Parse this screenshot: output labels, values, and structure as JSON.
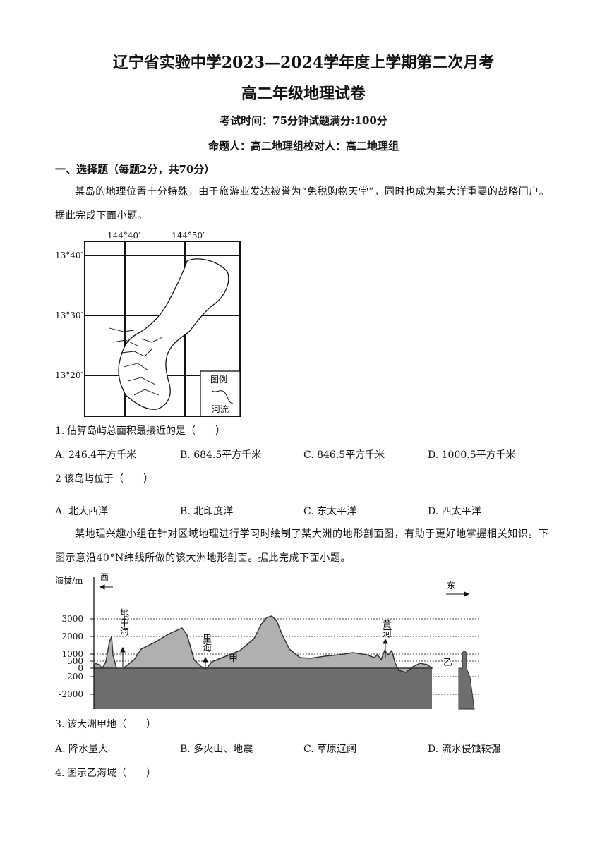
{
  "header": {
    "title": "辽宁省实验中学2023—2024学年度上学期第二次月考",
    "subtitle": "高二年级地理试卷",
    "exam_info": "考试时间：75分钟试题满分:100分",
    "authors": "命题人：高二地理组校对人：高二地理组"
  },
  "section": {
    "title": "一、选择题（每题2分，共70分）"
  },
  "passages": [
    {
      "text": "某岛的地理位置十分特殊，由于旅游业发达被誉为“免税购物天堂”，同时也成为某大洋重要的战略门户。据此完成下面小题。"
    },
    {
      "text": "某地理兴趣小组在针对区域地理进行学习时绘制了某大洲的地形剖面图，有助于更好地掌握相关知识。下图示意沿40°N纬线所做的该大洲地形剖面。据此完成下面小题。"
    }
  ],
  "map": {
    "lon_labels": [
      "144°40′",
      "144°50′"
    ],
    "lat_labels": [
      "13°40′",
      "13°30′",
      "13°20′"
    ],
    "legend_title": "图例",
    "legend_item": "河流"
  },
  "profile": {
    "y_axis_title": "海拔/m",
    "west": "西",
    "east": "东",
    "y_labels": [
      "3000",
      "2000",
      "1000",
      "500",
      "0",
      "-200",
      "-2000"
    ],
    "place_labels": [
      "地中海",
      "里海",
      "甲",
      "黄河",
      "乙"
    ]
  },
  "questions": [
    {
      "number": "1.",
      "stem": "估算岛屿总面积最接近的是（　　）",
      "options": [
        "A. 246.4平方千米",
        "B. 684.5平方千米",
        "C. 846.5平方千米",
        "D. 1000.5平方千米"
      ]
    },
    {
      "number": "2",
      "stem": "该岛屿位于（　　）",
      "options": [
        "A. 北大西洋",
        "B. 北印度洋",
        "C. 东太平洋",
        "D. 西太平洋"
      ]
    },
    {
      "number": "3.",
      "stem": "该大洲甲地（　　）",
      "options": [
        "A. 降水量大",
        "B. 多火山、地震",
        "C. 草原辽阔",
        "D. 流水侵蚀较强"
      ]
    },
    {
      "number": "4.",
      "stem": "图示乙海域（　　）",
      "options": []
    }
  ]
}
